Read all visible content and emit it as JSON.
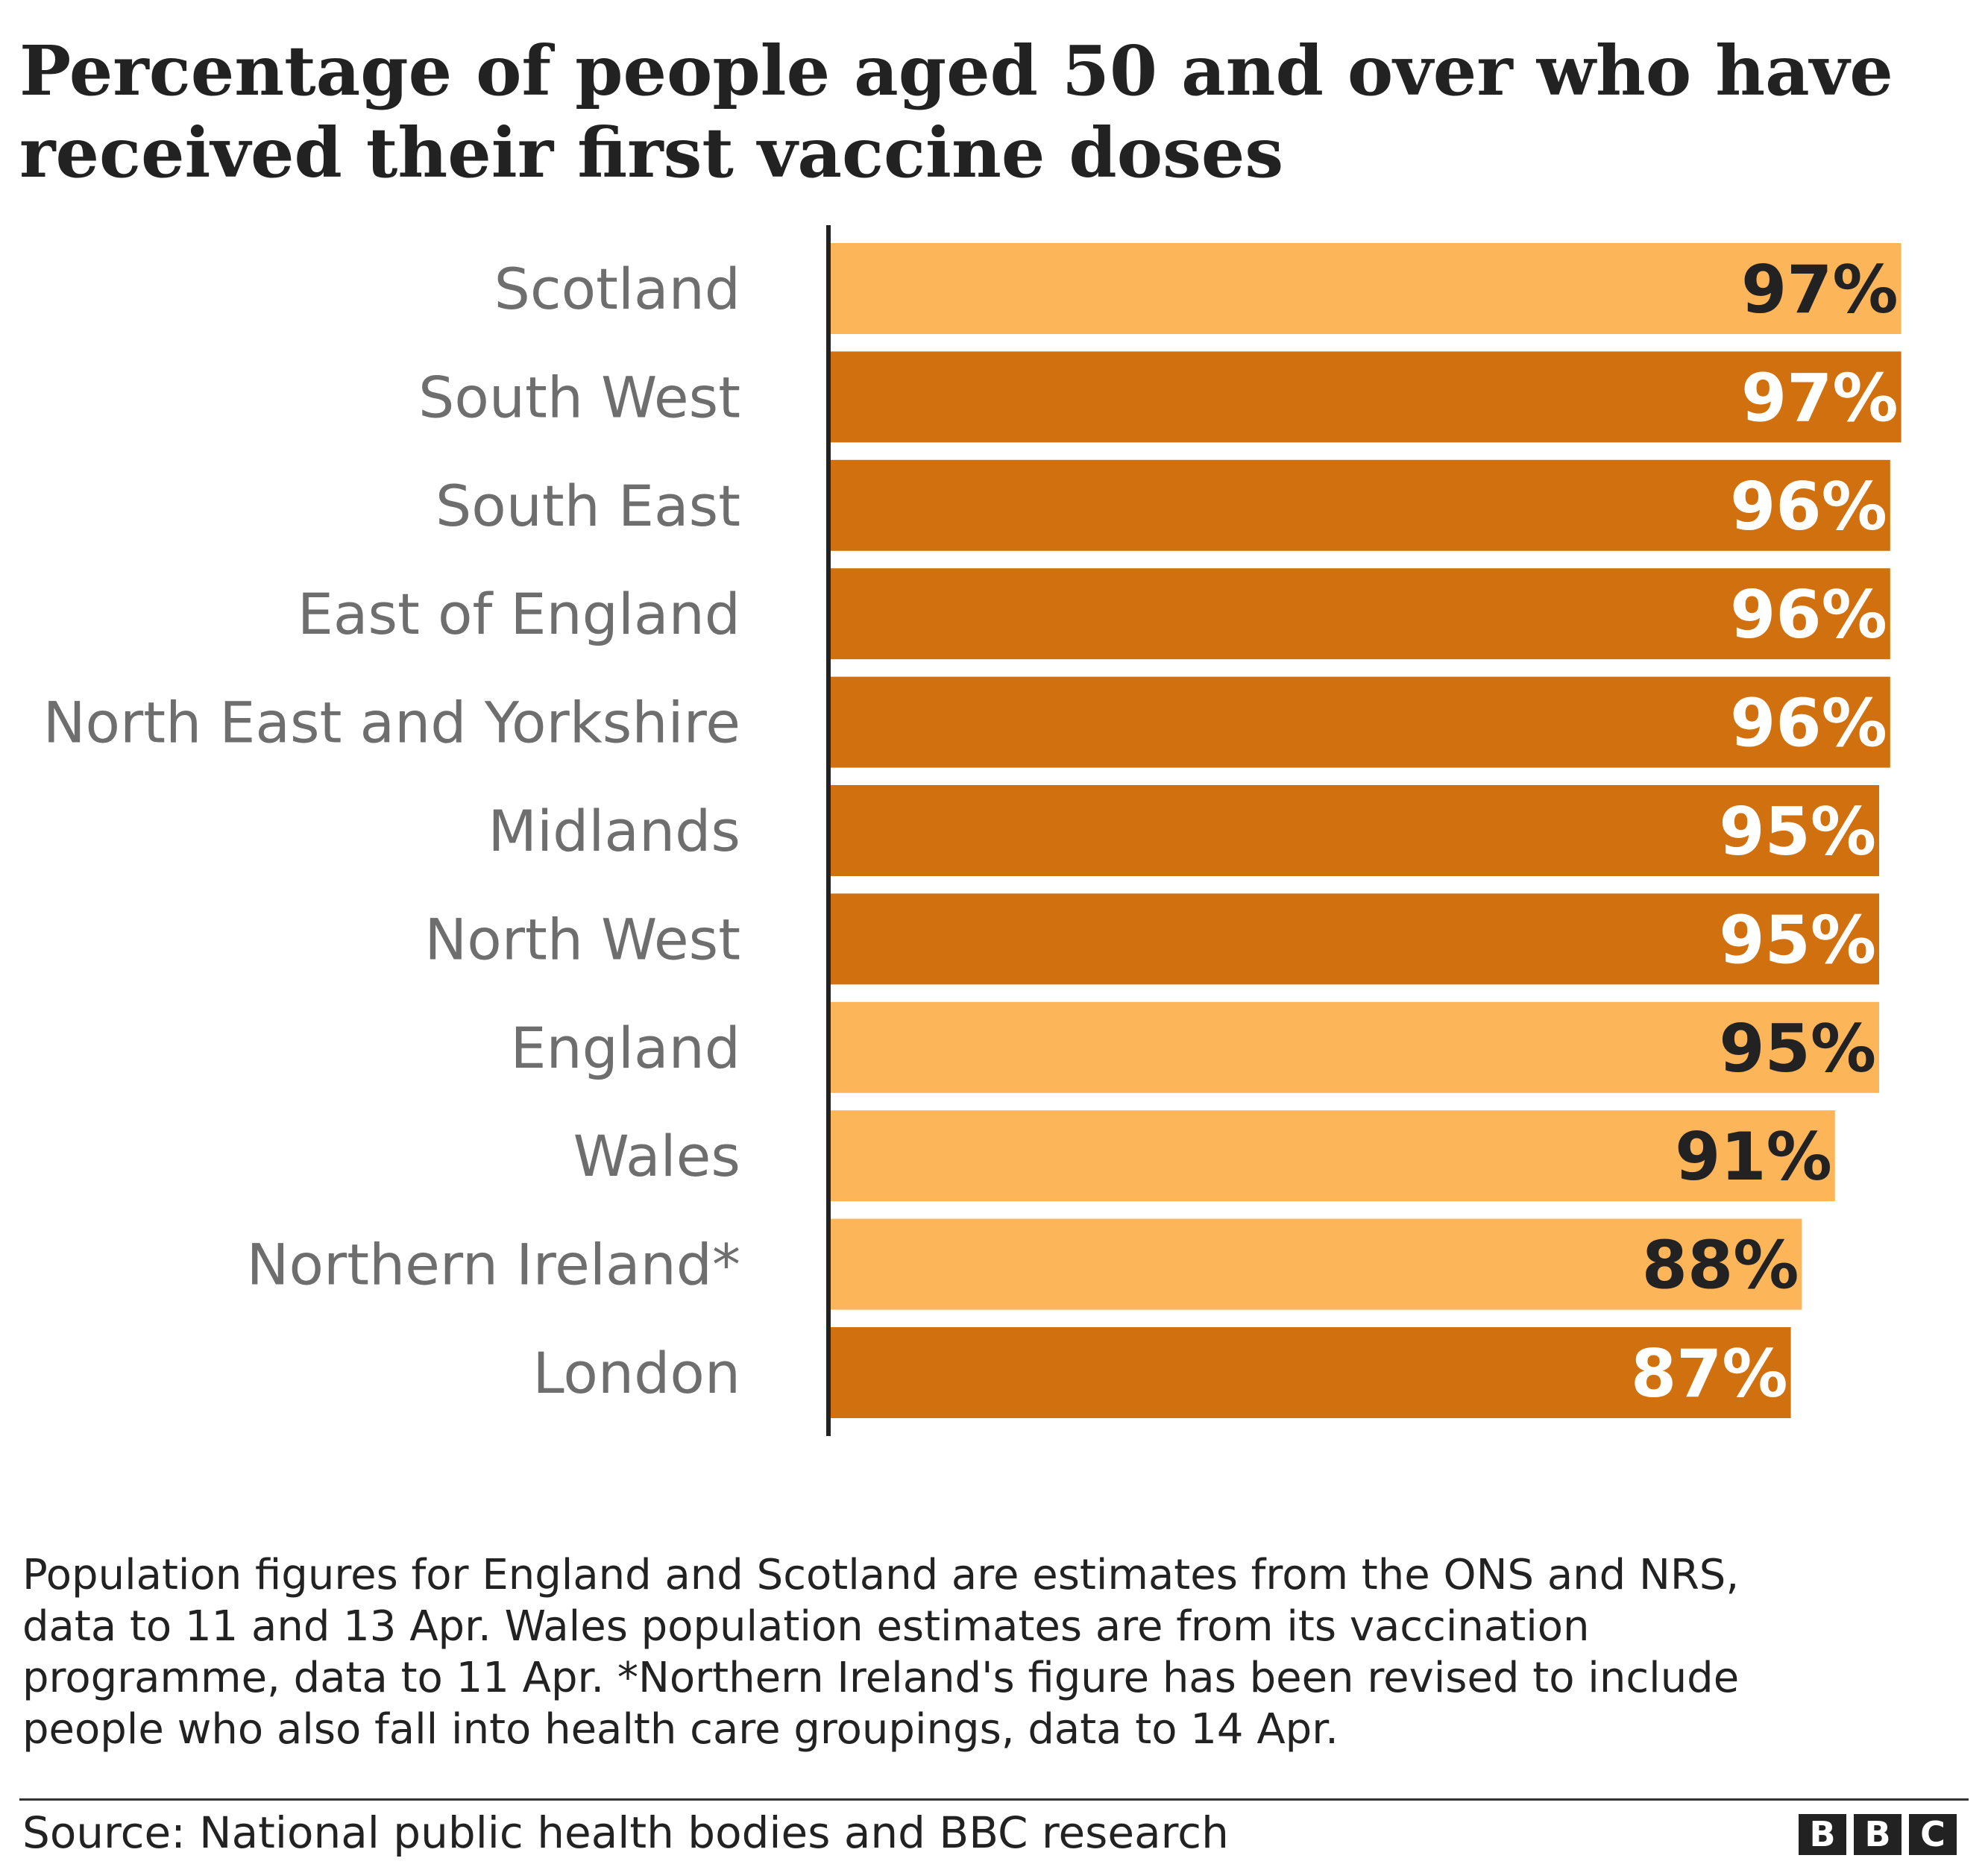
{
  "chart_data": {
    "type": "bar",
    "orientation": "horizontal",
    "title": "Percentage of people aged 50 and over who have received their first vaccine doses",
    "categories": [
      "Scotland",
      "South West",
      "South East",
      "East of England",
      "North East and Yorkshire",
      "Midlands",
      "North West",
      "England",
      "Wales",
      "Northern Ireland*",
      "London"
    ],
    "values": [
      97,
      97,
      96,
      96,
      96,
      95,
      95,
      95,
      91,
      88,
      87
    ],
    "value_labels": [
      "97%",
      "97%",
      "96%",
      "96%",
      "96%",
      "95%",
      "95%",
      "95%",
      "91%",
      "88%",
      "87%"
    ],
    "bar_color_role": [
      "nation",
      "region",
      "region",
      "region",
      "region",
      "region",
      "region",
      "nation",
      "nation",
      "nation",
      "region"
    ],
    "colors": {
      "nation": "#fdb55a",
      "region": "#d1700e",
      "nation_text": "#222222",
      "region_text": "#ffffff",
      "axis": "#222222"
    },
    "xlim": [
      0,
      100
    ],
    "xlabel": "",
    "ylabel": "",
    "grid": false,
    "legend": "none"
  },
  "footnote": "Population figures for England and Scotland are estimates from the ONS and NRS,\ndata to 11 and 13 Apr. Wales population estimates are from its vaccination\nprogramme, data to 11 Apr. *Northern Ireland's figure has been revised  to include\npeople who also fall into health care groupings, data to 14 Apr.",
  "source": "Source: National public health bodies and BBC research",
  "logo": {
    "letters": [
      "B",
      "B",
      "C"
    ]
  }
}
